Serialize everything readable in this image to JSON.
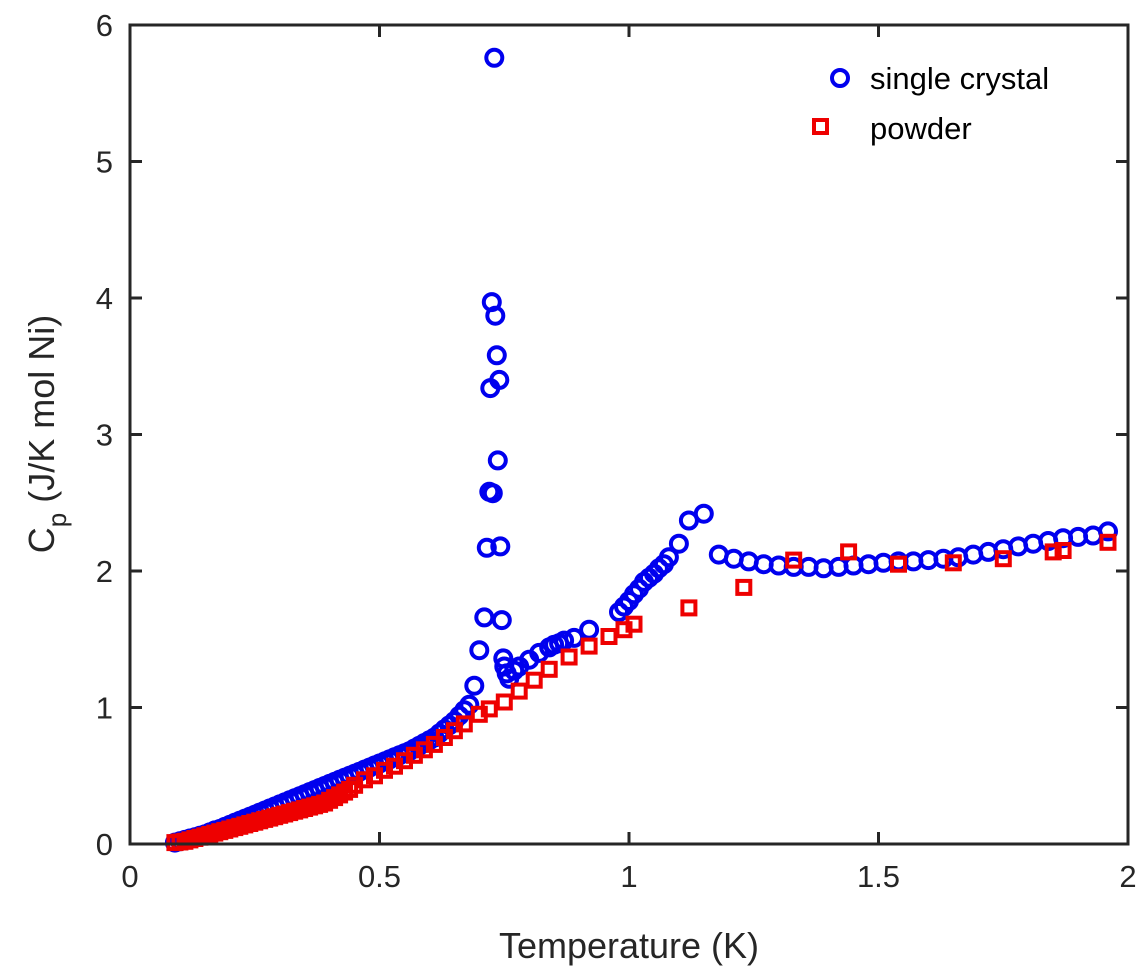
{
  "chart_data": {
    "type": "scatter",
    "xlabel": "Temperature (K)",
    "ylabel_main": "C",
    "ylabel_sub": "p",
    "ylabel_rest": "(J/K mol Ni)",
    "xlim": [
      0,
      2
    ],
    "ylim": [
      0,
      6
    ],
    "x_ticks": [
      0,
      0.5,
      1,
      1.5,
      2
    ],
    "x_tick_labels": [
      "0",
      "0.5",
      "1",
      "1.5",
      "2"
    ],
    "y_ticks": [
      0,
      1,
      2,
      3,
      4,
      5,
      6
    ],
    "y_tick_labels": [
      "0",
      "1",
      "2",
      "3",
      "4",
      "5",
      "6"
    ],
    "grid": false,
    "legend_position": "top-right",
    "colors": {
      "single_crystal": "#0000ee",
      "powder": "#ee0000",
      "axis": "#262626"
    },
    "series": [
      {
        "name": "single crystal",
        "marker": "circle",
        "x": [
          0.09,
          0.1,
          0.11,
          0.12,
          0.13,
          0.14,
          0.15,
          0.16,
          0.17,
          0.18,
          0.19,
          0.2,
          0.21,
          0.22,
          0.23,
          0.24,
          0.25,
          0.26,
          0.27,
          0.28,
          0.29,
          0.3,
          0.31,
          0.32,
          0.33,
          0.34,
          0.35,
          0.36,
          0.37,
          0.38,
          0.39,
          0.4,
          0.41,
          0.42,
          0.43,
          0.44,
          0.45,
          0.46,
          0.47,
          0.48,
          0.49,
          0.5,
          0.51,
          0.52,
          0.53,
          0.54,
          0.55,
          0.56,
          0.57,
          0.58,
          0.59,
          0.6,
          0.61,
          0.62,
          0.63,
          0.64,
          0.65,
          0.66,
          0.67,
          0.68,
          0.69,
          0.7,
          0.71,
          0.715,
          0.72,
          0.722,
          0.725,
          0.727,
          0.73,
          0.732,
          0.735,
          0.737,
          0.74,
          0.742,
          0.745,
          0.748,
          0.75,
          0.755,
          0.76,
          0.77,
          0.78,
          0.8,
          0.82,
          0.84,
          0.85,
          0.86,
          0.87,
          0.89,
          0.92,
          0.98,
          0.99,
          1.0,
          1.01,
          1.02,
          1.03,
          1.04,
          1.05,
          1.06,
          1.07,
          1.08,
          1.1,
          1.12,
          1.15,
          1.18,
          1.21,
          1.24,
          1.27,
          1.3,
          1.33,
          1.36,
          1.39,
          1.42,
          1.45,
          1.48,
          1.51,
          1.54,
          1.57,
          1.6,
          1.63,
          1.66,
          1.69,
          1.72,
          1.75,
          1.78,
          1.81,
          1.84,
          1.87,
          1.9,
          1.93,
          1.96
        ],
        "y": [
          0.01,
          0.02,
          0.03,
          0.04,
          0.05,
          0.06,
          0.07,
          0.085,
          0.1,
          0.11,
          0.125,
          0.14,
          0.155,
          0.17,
          0.185,
          0.2,
          0.215,
          0.23,
          0.245,
          0.26,
          0.275,
          0.29,
          0.305,
          0.32,
          0.335,
          0.35,
          0.365,
          0.38,
          0.395,
          0.41,
          0.425,
          0.44,
          0.455,
          0.47,
          0.485,
          0.5,
          0.515,
          0.53,
          0.545,
          0.56,
          0.575,
          0.59,
          0.605,
          0.62,
          0.635,
          0.65,
          0.665,
          0.68,
          0.7,
          0.72,
          0.74,
          0.76,
          0.78,
          0.81,
          0.84,
          0.87,
          0.9,
          0.94,
          0.98,
          1.02,
          1.16,
          1.42,
          1.66,
          2.17,
          2.58,
          3.34,
          3.97,
          2.57,
          5.76,
          3.87,
          3.58,
          2.81,
          3.4,
          2.18,
          1.64,
          1.36,
          1.3,
          1.25,
          1.21,
          1.27,
          1.3,
          1.35,
          1.4,
          1.44,
          1.46,
          1.47,
          1.49,
          1.51,
          1.57,
          1.7,
          1.74,
          1.78,
          1.83,
          1.87,
          1.92,
          1.95,
          1.98,
          2.02,
          2.05,
          2.1,
          2.2,
          2.37,
          2.42,
          2.12,
          2.09,
          2.07,
          2.05,
          2.04,
          2.03,
          2.03,
          2.02,
          2.03,
          2.04,
          2.05,
          2.06,
          2.07,
          2.07,
          2.08,
          2.09,
          2.1,
          2.12,
          2.14,
          2.16,
          2.18,
          2.2,
          2.22,
          2.24,
          2.25,
          2.26,
          2.29
        ]
      },
      {
        "name": "powder",
        "marker": "square",
        "x": [
          0.09,
          0.1,
          0.11,
          0.12,
          0.13,
          0.14,
          0.15,
          0.16,
          0.17,
          0.18,
          0.19,
          0.2,
          0.21,
          0.22,
          0.23,
          0.24,
          0.25,
          0.26,
          0.27,
          0.28,
          0.29,
          0.3,
          0.31,
          0.32,
          0.33,
          0.34,
          0.35,
          0.36,
          0.37,
          0.38,
          0.39,
          0.4,
          0.41,
          0.42,
          0.43,
          0.44,
          0.45,
          0.47,
          0.49,
          0.51,
          0.53,
          0.55,
          0.57,
          0.59,
          0.61,
          0.63,
          0.65,
          0.67,
          0.7,
          0.72,
          0.75,
          0.78,
          0.81,
          0.84,
          0.88,
          0.92,
          0.96,
          0.99,
          1.01,
          1.12,
          1.23,
          1.33,
          1.44,
          1.54,
          1.65,
          1.75,
          1.85,
          1.87,
          1.96
        ],
        "y": [
          0.01,
          0.015,
          0.02,
          0.03,
          0.04,
          0.05,
          0.06,
          0.07,
          0.08,
          0.09,
          0.1,
          0.11,
          0.12,
          0.13,
          0.14,
          0.15,
          0.16,
          0.17,
          0.18,
          0.19,
          0.2,
          0.21,
          0.22,
          0.23,
          0.24,
          0.25,
          0.26,
          0.27,
          0.28,
          0.29,
          0.3,
          0.32,
          0.34,
          0.36,
          0.38,
          0.4,
          0.43,
          0.47,
          0.5,
          0.54,
          0.57,
          0.61,
          0.65,
          0.69,
          0.73,
          0.78,
          0.83,
          0.88,
          0.95,
          0.99,
          1.04,
          1.12,
          1.2,
          1.28,
          1.37,
          1.45,
          1.52,
          1.57,
          1.61,
          1.73,
          1.88,
          2.08,
          2.14,
          2.05,
          2.06,
          2.09,
          2.14,
          2.15,
          2.21
        ]
      }
    ]
  }
}
